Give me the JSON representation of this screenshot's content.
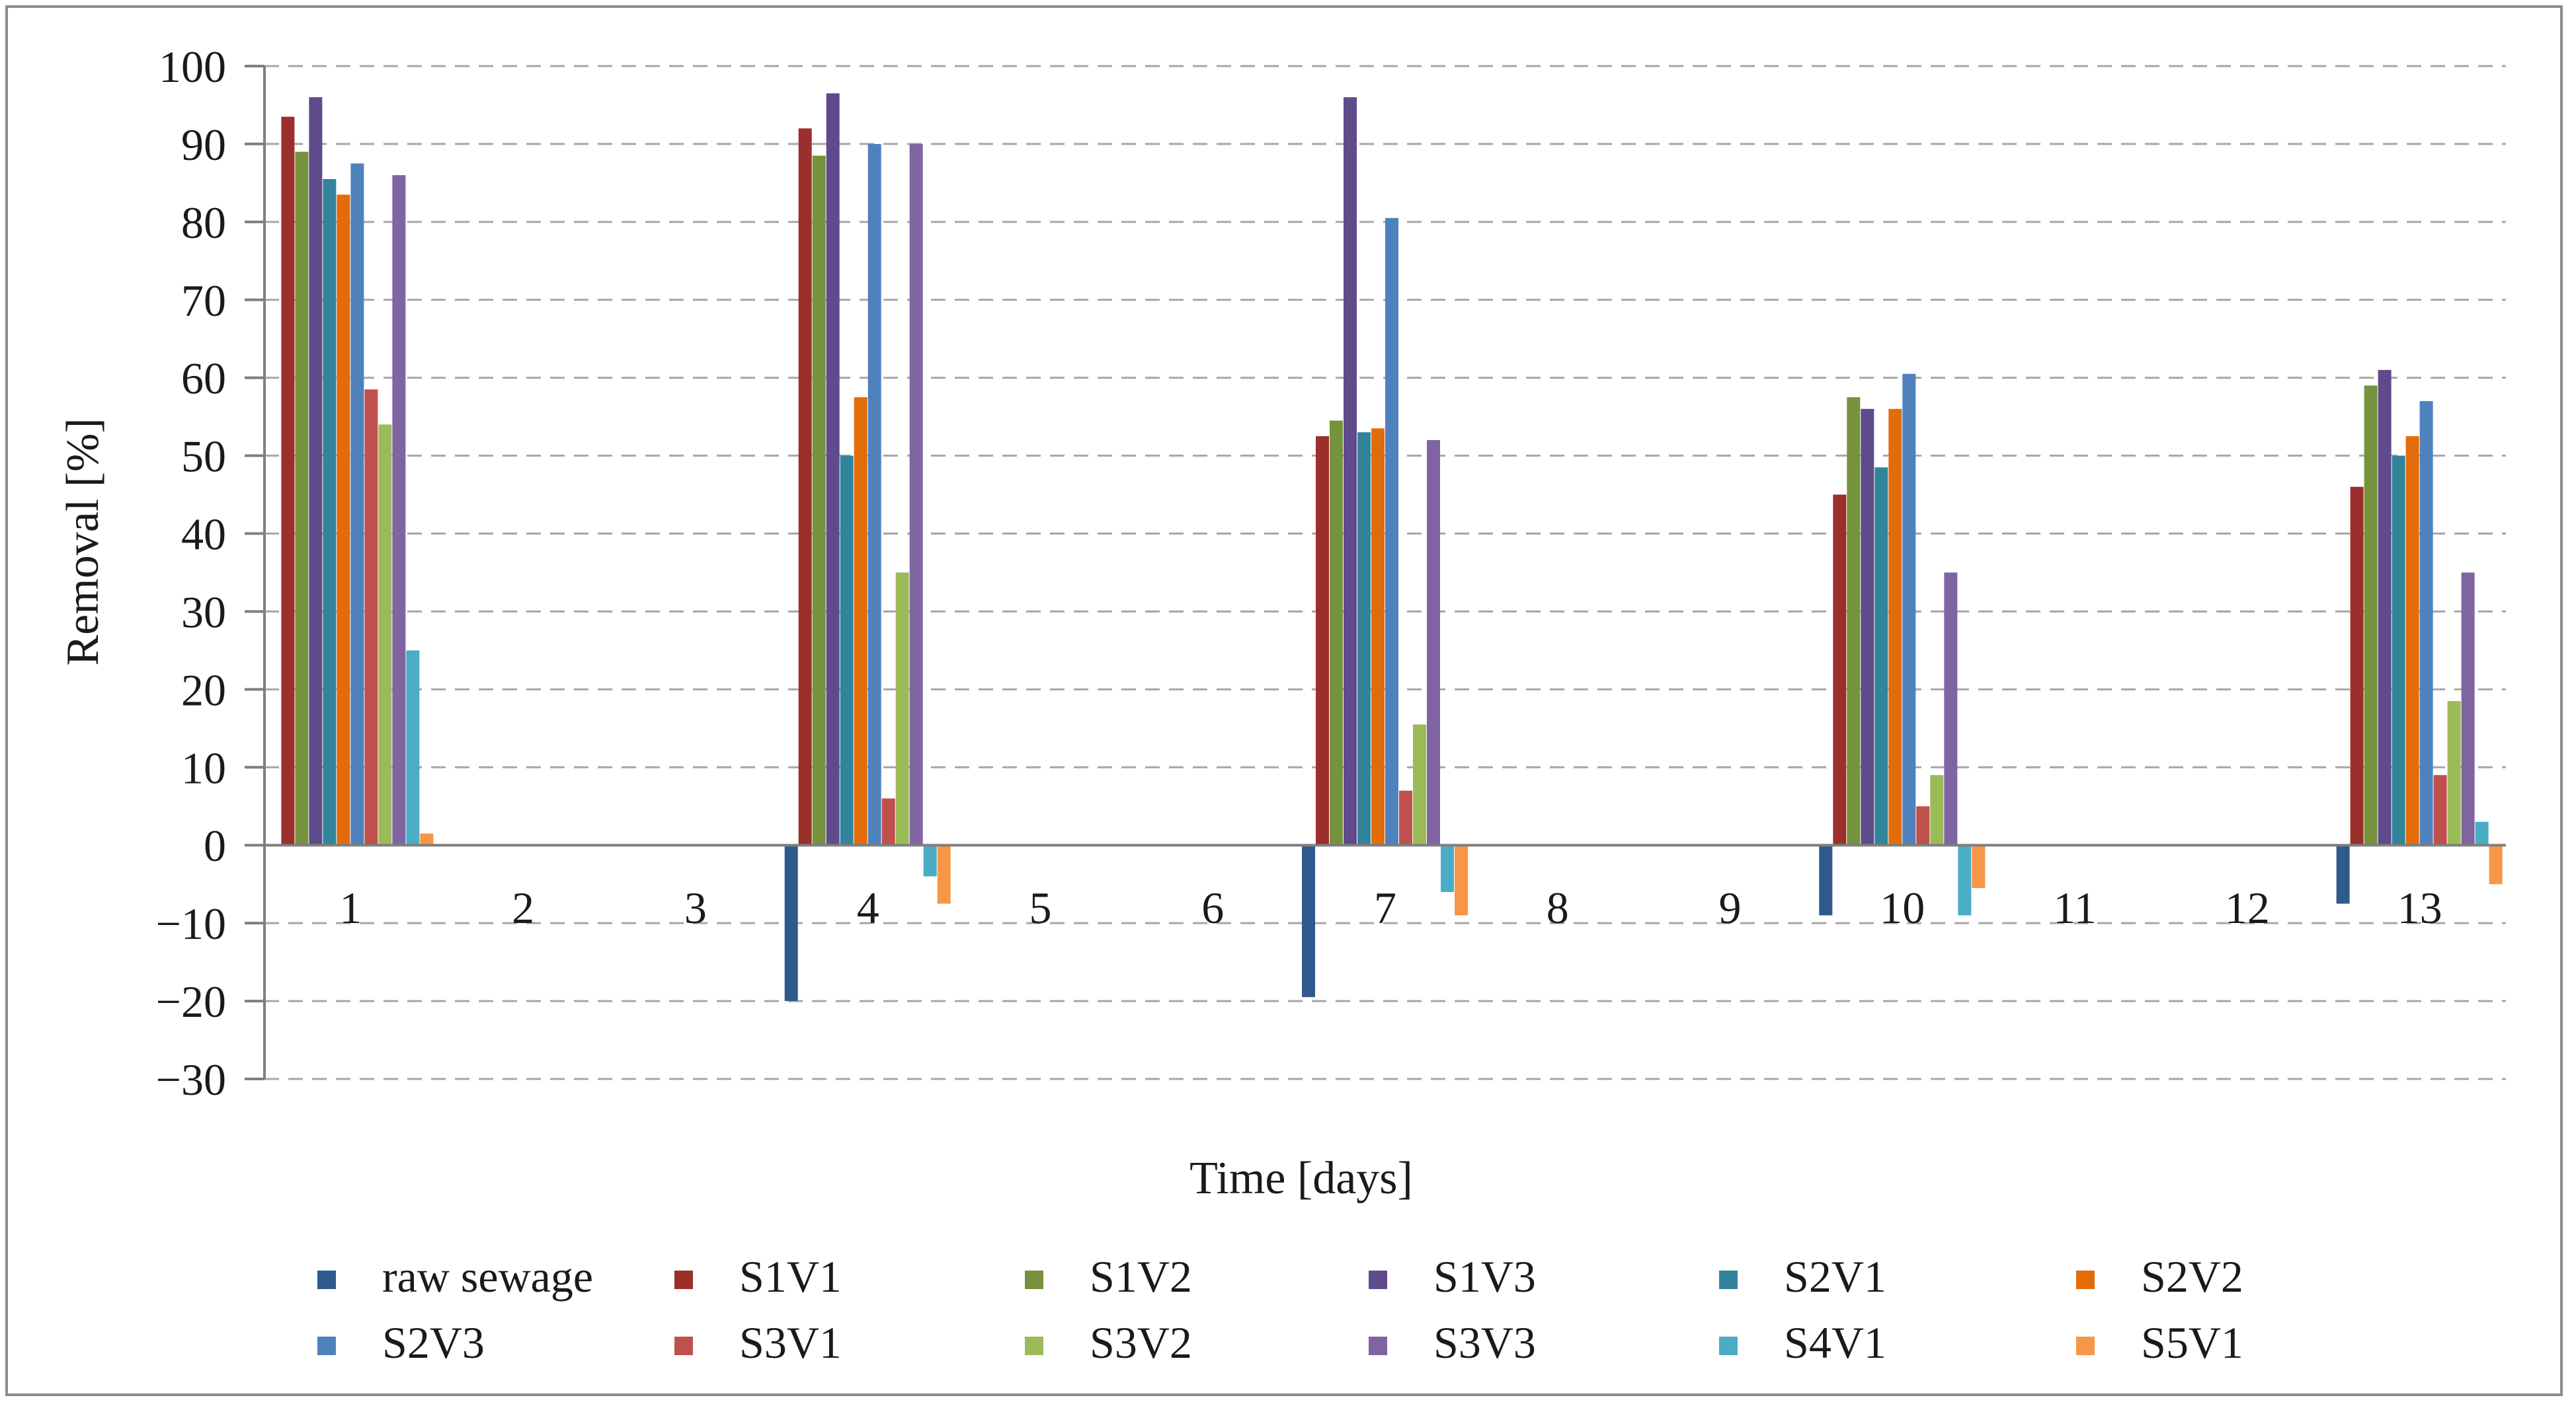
{
  "chart_data": {
    "type": "bar",
    "title": "",
    "xlabel": "Time [days]",
    "ylabel": "Removal [%]",
    "ylim": [
      -30,
      100
    ],
    "yticks": [
      100,
      90,
      80,
      70,
      60,
      50,
      40,
      30,
      20,
      10,
      0,
      -10,
      -20,
      -30
    ],
    "ytick_labels": [
      "100",
      "90",
      "80",
      "70",
      "60",
      "50",
      "40",
      "30",
      "20",
      "10",
      "0",
      "−10",
      "−20",
      "−30"
    ],
    "grid": true,
    "legend_position": "bottom",
    "categories": [
      "1",
      "2",
      "3",
      "4",
      "5",
      "6",
      "7",
      "8",
      "9",
      "10",
      "11",
      "12",
      "13"
    ],
    "series": [
      {
        "name": "raw sewage",
        "color": "#2f5b8c",
        "values": [
          null,
          null,
          null,
          -20,
          null,
          null,
          -19.5,
          null,
          null,
          -9,
          null,
          null,
          -7.5
        ]
      },
      {
        "name": "S1V1",
        "color": "#9b2f2b",
        "values": [
          93.5,
          null,
          null,
          92,
          null,
          null,
          52.5,
          null,
          null,
          45,
          null,
          null,
          46
        ]
      },
      {
        "name": "S1V2",
        "color": "#76923c",
        "values": [
          89,
          null,
          null,
          88.5,
          null,
          null,
          54.5,
          null,
          null,
          57.5,
          null,
          null,
          59
        ]
      },
      {
        "name": "S1V3",
        "color": "#5f4b8b",
        "values": [
          96,
          null,
          null,
          96.5,
          null,
          null,
          96,
          null,
          null,
          56,
          null,
          null,
          61
        ]
      },
      {
        "name": "S2V1",
        "color": "#31849b",
        "values": [
          85.5,
          null,
          null,
          50,
          null,
          null,
          53,
          null,
          null,
          48.5,
          null,
          null,
          50
        ]
      },
      {
        "name": "S2V2",
        "color": "#e36c0a",
        "values": [
          83.5,
          null,
          null,
          57.5,
          null,
          null,
          53.5,
          null,
          null,
          56,
          null,
          null,
          52.5
        ]
      },
      {
        "name": "S2V3",
        "color": "#4f81bd",
        "values": [
          87.5,
          null,
          null,
          90,
          null,
          null,
          80.5,
          null,
          null,
          60.5,
          null,
          null,
          57
        ]
      },
      {
        "name": "S3V1",
        "color": "#c0504d",
        "values": [
          58.5,
          null,
          null,
          6,
          null,
          null,
          7,
          null,
          null,
          5,
          null,
          null,
          9
        ]
      },
      {
        "name": "S3V2",
        "color": "#9bbb59",
        "values": [
          54,
          null,
          null,
          35,
          null,
          null,
          15.5,
          null,
          null,
          9,
          null,
          null,
          18.5
        ]
      },
      {
        "name": "S3V3",
        "color": "#8064a2",
        "values": [
          86,
          null,
          null,
          90,
          null,
          null,
          52,
          null,
          null,
          35,
          null,
          null,
          35
        ]
      },
      {
        "name": "S4V1",
        "color": "#4bacc6",
        "values": [
          25,
          null,
          null,
          -4,
          null,
          null,
          -6,
          null,
          null,
          -9,
          null,
          null,
          3
        ]
      },
      {
        "name": "S5V1",
        "color": "#f79646",
        "values": [
          1.5,
          null,
          null,
          -7.5,
          null,
          null,
          -9,
          null,
          null,
          -5.5,
          null,
          null,
          -5
        ]
      }
    ]
  }
}
